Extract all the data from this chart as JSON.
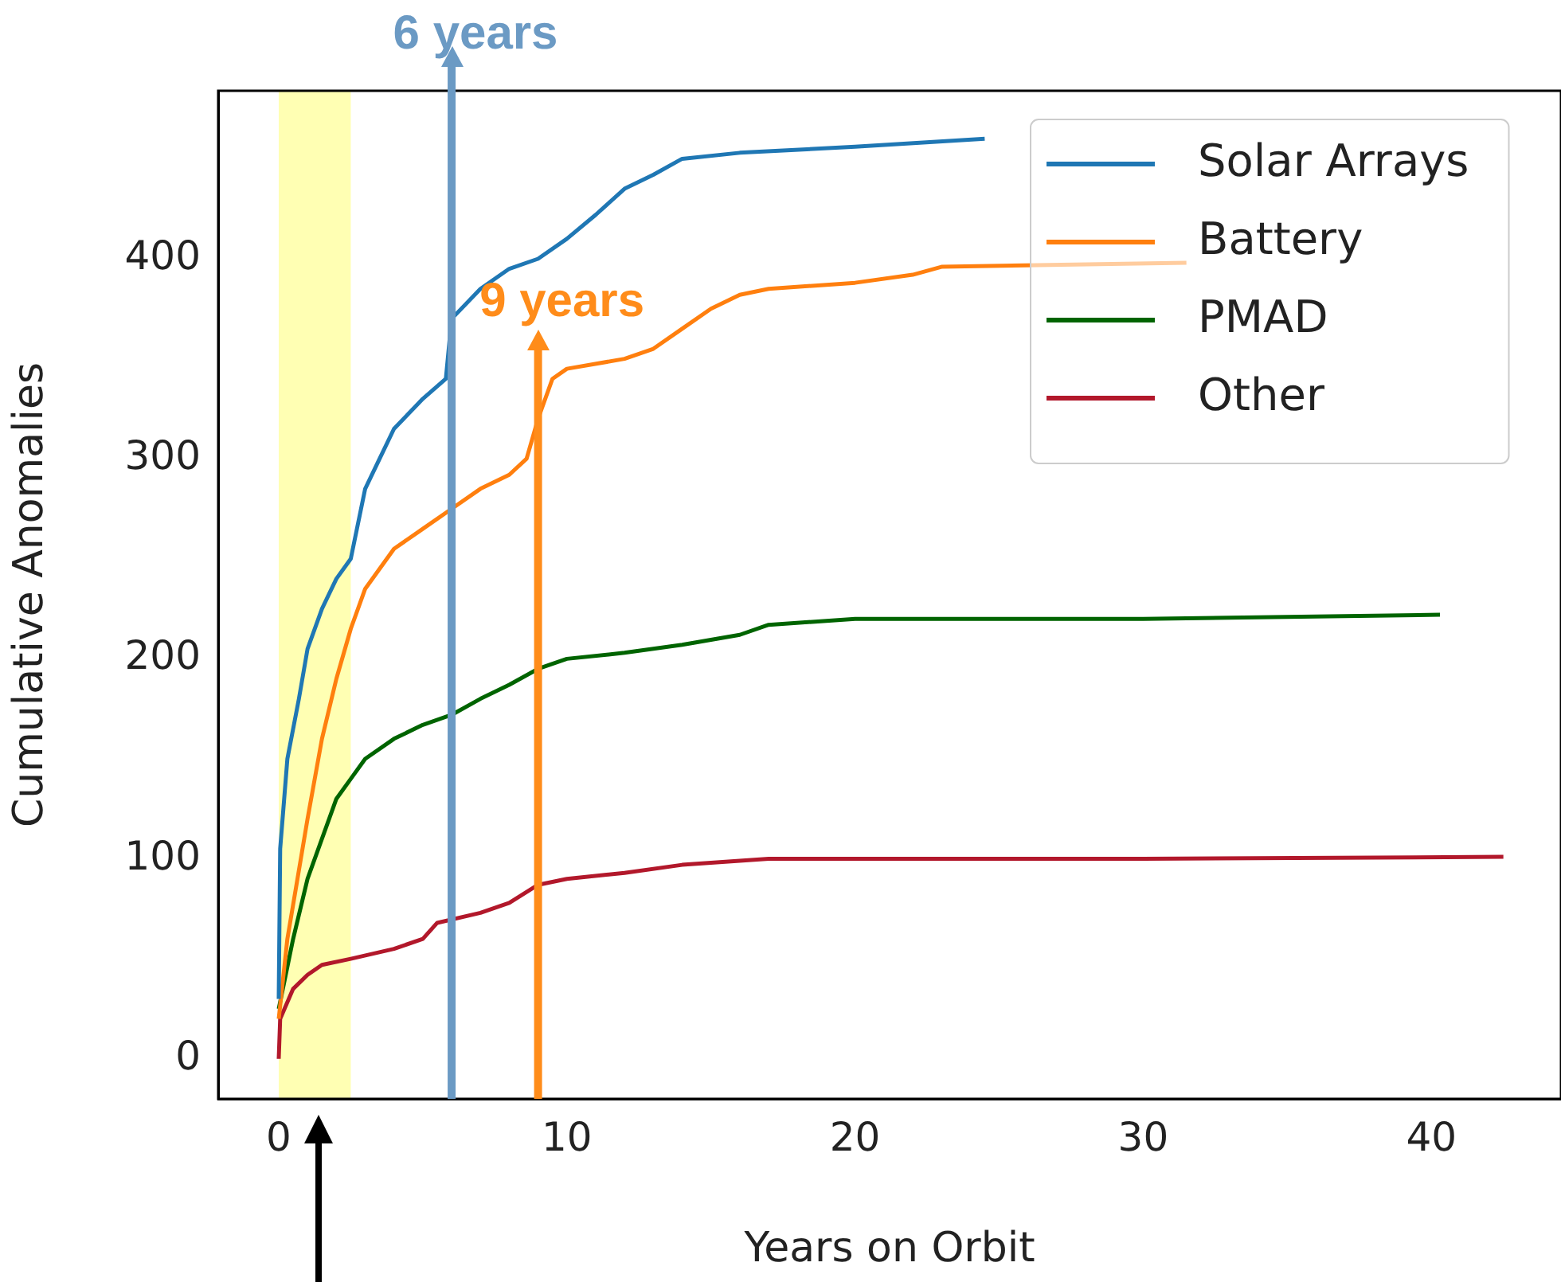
{
  "chart_data": {
    "type": "line",
    "xlabel": "Years on Orbit",
    "ylabel": "Cumulative Anomalies",
    "xlim": [
      -2.1,
      44.5
    ],
    "xticks": [
      0,
      10,
      20,
      30,
      40
    ],
    "ylim": [
      -20,
      484
    ],
    "yticks": [
      0,
      100,
      200,
      300,
      400
    ],
    "grid": false,
    "legend": "top right",
    "marker": "none",
    "line_style": "solid",
    "series": [
      {
        "name": "Solar Arrays",
        "color": "#1f77b4",
        "x": [
          0,
          0.05,
          0.3,
          0.7,
          1,
          1.5,
          2,
          2.5,
          3,
          3.5,
          4,
          5,
          5.8,
          6,
          7,
          8,
          9,
          10,
          11,
          12,
          13,
          14,
          16,
          20,
          24.5
        ],
        "values": [
          30,
          105,
          150,
          180,
          205,
          225,
          240,
          250,
          285,
          300,
          315,
          330,
          340,
          370,
          385,
          395,
          400,
          410,
          422,
          435,
          442,
          450,
          453,
          456,
          460
        ]
      },
      {
        "name": "Battery",
        "color": "#ff7f0e",
        "x": [
          0,
          0.3,
          1,
          1.5,
          2,
          2.5,
          3,
          4,
          5,
          6,
          7,
          8,
          8.6,
          9,
          9.5,
          10,
          12,
          13,
          14,
          15,
          16,
          17,
          20,
          22,
          23,
          31.5
        ],
        "values": [
          20,
          60,
          120,
          160,
          190,
          215,
          235,
          255,
          265,
          275,
          285,
          292,
          300,
          320,
          340,
          345,
          350,
          355,
          365,
          375,
          382,
          385,
          388,
          392,
          396,
          398
        ]
      },
      {
        "name": "PMAD",
        "color": "#006400",
        "x": [
          0,
          0.5,
          1,
          1.5,
          2,
          2.5,
          3,
          4,
          5,
          6,
          7,
          8,
          9,
          10,
          12,
          14,
          16,
          17,
          20,
          30,
          40.3
        ],
        "values": [
          25,
          60,
          90,
          110,
          130,
          140,
          150,
          160,
          167,
          172,
          180,
          187,
          195,
          200,
          203,
          207,
          212,
          217,
          220,
          220,
          222
        ]
      },
      {
        "name": "Other",
        "color": "#b2182b",
        "x": [
          0,
          0.05,
          0.5,
          1,
          1.5,
          2.5,
          4,
          5,
          5.5,
          7,
          8,
          9,
          10,
          12,
          14,
          16,
          17,
          30,
          42.5
        ],
        "values": [
          0,
          20,
          35,
          42,
          47,
          50,
          55,
          60,
          68,
          73,
          78,
          87,
          90,
          93,
          97,
          99,
          100,
          100,
          101
        ]
      }
    ],
    "ref_lines": [
      {
        "axis": "x",
        "value": 6,
        "label": "6 years",
        "color": "#6b9ac4"
      },
      {
        "axis": "x",
        "value": 9,
        "label": "9 years",
        "color": "#ff8c1a"
      }
    ],
    "bands": [
      {
        "axis": "x",
        "from": 0,
        "to": 2.5,
        "color": "#ffff99"
      }
    ]
  }
}
